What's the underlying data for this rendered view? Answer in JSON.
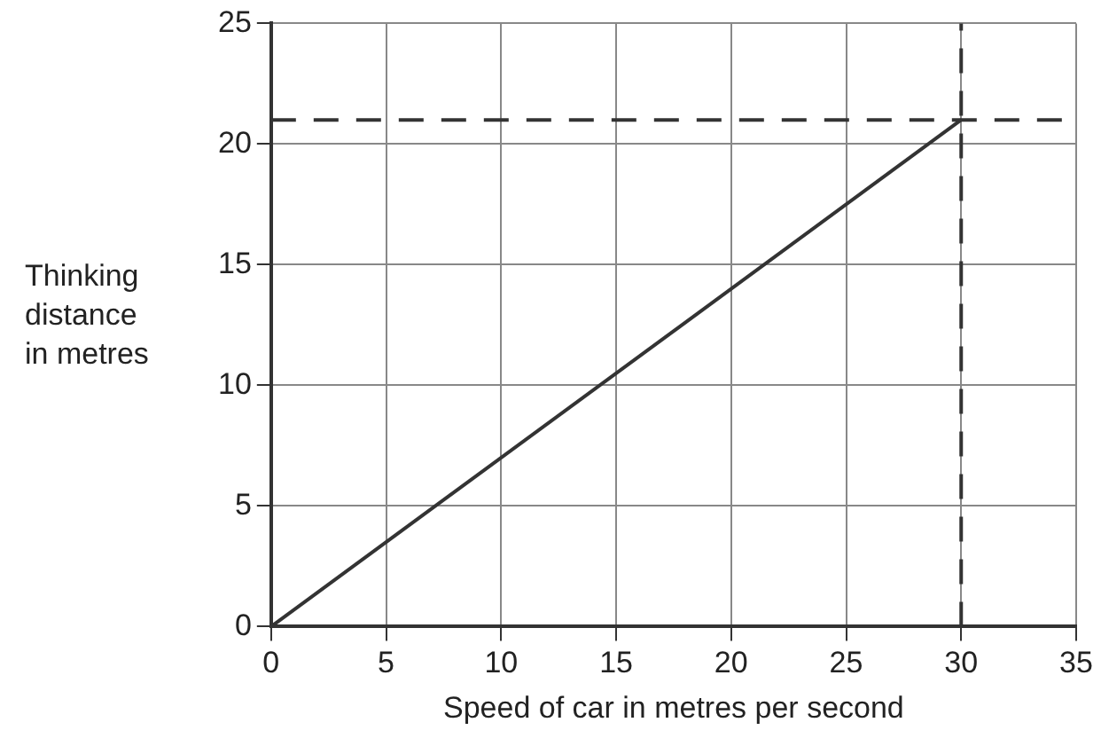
{
  "chart_data": {
    "type": "line",
    "xlabel": "Speed of car in metres per second",
    "ylabel": "Thinking\ndistance\nin metres",
    "x": [
      0,
      30
    ],
    "series": [
      {
        "color": "#333333",
        "values": [
          0,
          21
        ]
      }
    ],
    "xlim": [
      0,
      35
    ],
    "xticks": [
      0,
      5,
      10,
      15,
      20,
      25,
      30,
      35
    ],
    "ylim": [
      0,
      25
    ],
    "yticks": [
      0,
      5,
      10,
      15,
      20,
      25
    ],
    "ref_lines": [
      {
        "axis": "y",
        "value": 21,
        "line_style": "dashed",
        "color": "#333333"
      },
      {
        "axis": "x",
        "value": 30,
        "line_style": "dashed",
        "color": "#333333"
      }
    ],
    "grid": true,
    "legend": false,
    "marker": "none",
    "line_style": "solid"
  }
}
